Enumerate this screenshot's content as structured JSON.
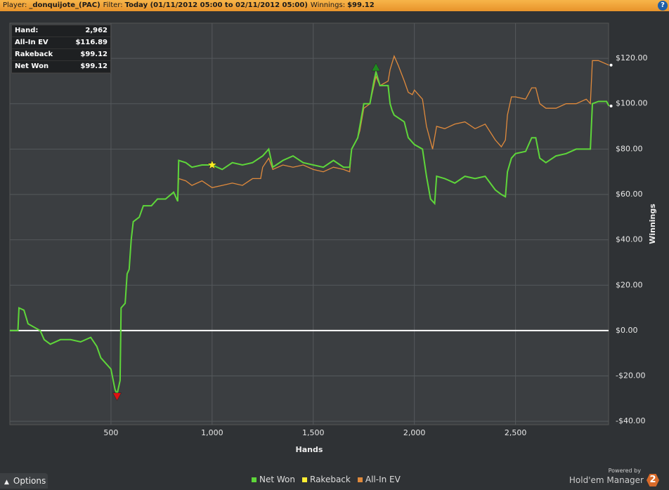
{
  "header": [
    {
      "label": "Player:",
      "value": "_donquijote_(PAC)"
    },
    {
      "label": "Filter:",
      "value": "Today (01/11/2012 05:00 to 02/11/2012 05:00)"
    },
    {
      "label": "Winnings:",
      "value": "$99.12"
    }
  ],
  "help": "?",
  "stats": [
    {
      "label": "Hand:",
      "value": "2,962"
    },
    {
      "label": "All-In EV",
      "value": "$116.89"
    },
    {
      "label": "Rakeback",
      "value": "$99.12"
    },
    {
      "label": "Net Won",
      "value": "$99.12"
    }
  ],
  "footer": {
    "options": "Options",
    "powered_by": "Powered by",
    "brand": "Hold'em Manager",
    "badge": "2"
  },
  "chart_data": {
    "type": "line",
    "xlabel": "Hands",
    "ylabel": "Winnings",
    "grid": true,
    "xlim": [
      0,
      2960
    ],
    "ylim": [
      -41.5,
      135.5
    ],
    "xticks": [
      500,
      {
        "value": 1000,
        "label": "1,000"
      },
      {
        "value": 1500,
        "label": "1,500"
      },
      {
        "value": 2000,
        "label": "2,000"
      },
      {
        "value": 2500,
        "label": "2,500"
      }
    ],
    "yticks": [
      {
        "value": -40,
        "label": "-$40.00"
      },
      {
        "value": -20,
        "label": "-$20.00"
      },
      {
        "value": 0,
        "label": "$0.00"
      },
      {
        "value": 20,
        "label": "$20.00"
      },
      {
        "value": 40,
        "label": "$40.00"
      },
      {
        "value": 60,
        "label": "$60.00"
      },
      {
        "value": 80,
        "label": "$80.00"
      },
      {
        "value": 100,
        "label": "$100.00"
      },
      {
        "value": 120,
        "label": "$120.00"
      }
    ],
    "series": [
      {
        "name": "All-In EV",
        "color": "#e08a3c",
        "x": [
          0,
          40,
          45,
          70,
          90,
          150,
          170,
          200,
          250,
          300,
          350,
          400,
          430,
          450,
          480,
          500,
          520,
          530,
          545,
          550,
          570,
          580,
          590,
          600,
          610,
          640,
          660,
          700,
          730,
          770,
          810,
          830,
          835,
          870,
          900,
          950,
          1000,
          1050,
          1100,
          1150,
          1200,
          1240,
          1250,
          1280,
          1300,
          1350,
          1400,
          1450,
          1500,
          1550,
          1600,
          1650,
          1680,
          1690,
          1720,
          1730,
          1750,
          1780,
          1800,
          1810,
          1830,
          1870,
          1880,
          1900,
          1920,
          1950,
          1970,
          1990,
          2000,
          2040,
          2060,
          2090,
          2110,
          2150,
          2200,
          2250,
          2300,
          2350,
          2400,
          2430,
          2450,
          2460,
          2480,
          2500,
          2550,
          2580,
          2600,
          2620,
          2650,
          2700,
          2750,
          2800,
          2850,
          2870,
          2880,
          2910,
          2962
        ],
        "values": [
          0,
          0,
          10,
          9,
          3,
          0,
          -4,
          -6,
          -4,
          -4,
          -5,
          -3,
          -7,
          -12,
          -15,
          -17,
          -26,
          -28,
          -22,
          10,
          12,
          25,
          27,
          40,
          48,
          50,
          55,
          55,
          58,
          58,
          61,
          57,
          67,
          66,
          64,
          66,
          63,
          64,
          65,
          64,
          67,
          67,
          72,
          76,
          71,
          73,
          72,
          73,
          71,
          70,
          72,
          71,
          70,
          80,
          85,
          88,
          98,
          100,
          108,
          112,
          108,
          110,
          115,
          121,
          117,
          110,
          105,
          104,
          106,
          102,
          90,
          80,
          90,
          89,
          91,
          92,
          89,
          91,
          84,
          81,
          84,
          95,
          103,
          103,
          102,
          107,
          107,
          100,
          98,
          98,
          100,
          100,
          102,
          100,
          119,
          119,
          117
        ]
      },
      {
        "name": "Net Won",
        "color": "#5ed63a",
        "x": [
          0,
          40,
          45,
          70,
          90,
          150,
          170,
          200,
          250,
          300,
          350,
          400,
          430,
          450,
          480,
          500,
          520,
          530,
          545,
          550,
          570,
          580,
          590,
          600,
          610,
          640,
          660,
          700,
          730,
          770,
          810,
          830,
          835,
          870,
          900,
          950,
          1000,
          1050,
          1100,
          1150,
          1200,
          1250,
          1280,
          1300,
          1350,
          1400,
          1450,
          1500,
          1550,
          1600,
          1650,
          1680,
          1690,
          1720,
          1730,
          1750,
          1780,
          1800,
          1810,
          1830,
          1870,
          1880,
          1890,
          1900,
          1950,
          1970,
          1990,
          2000,
          2040,
          2060,
          2080,
          2100,
          2110,
          2150,
          2200,
          2250,
          2300,
          2350,
          2400,
          2430,
          2450,
          2460,
          2480,
          2500,
          2550,
          2580,
          2600,
          2620,
          2650,
          2700,
          2750,
          2800,
          2850,
          2870,
          2880,
          2910,
          2950,
          2962
        ],
        "values": [
          0,
          0,
          10,
          9,
          3,
          0,
          -4,
          -6,
          -4,
          -4,
          -5,
          -3,
          -7,
          -12,
          -15,
          -17,
          -26,
          -28,
          -22,
          10,
          12,
          25,
          27,
          40,
          48,
          50,
          55,
          55,
          58,
          58,
          61,
          57,
          75,
          74,
          72,
          73,
          73,
          71,
          74,
          73,
          74,
          77,
          80,
          72,
          75,
          77,
          74,
          73,
          72,
          75,
          72,
          72,
          80,
          85,
          90,
          100,
          100,
          110,
          114,
          108,
          108,
          100,
          97,
          95,
          92,
          85,
          83,
          82,
          80,
          68,
          58,
          56,
          68,
          67,
          65,
          68,
          67,
          68,
          62,
          60,
          59,
          70,
          76,
          78,
          79,
          85,
          85,
          76,
          74,
          77,
          78,
          80,
          80,
          80,
          100,
          101,
          101,
          99
        ]
      },
      {
        "name": "Rakeback",
        "color": "#ffee33"
      }
    ],
    "legend": [
      "Net Won",
      "Rakeback",
      "All-In EV"
    ],
    "markers": [
      {
        "shape": "star",
        "color": "#ffee22",
        "x": 1000,
        "y": 73
      },
      {
        "shape": "triangle-up",
        "color": "#1f8a1f",
        "x": 1810,
        "y": 116
      },
      {
        "shape": "triangle-down",
        "color": "#dd1111",
        "x": 530,
        "y": -29
      }
    ]
  }
}
